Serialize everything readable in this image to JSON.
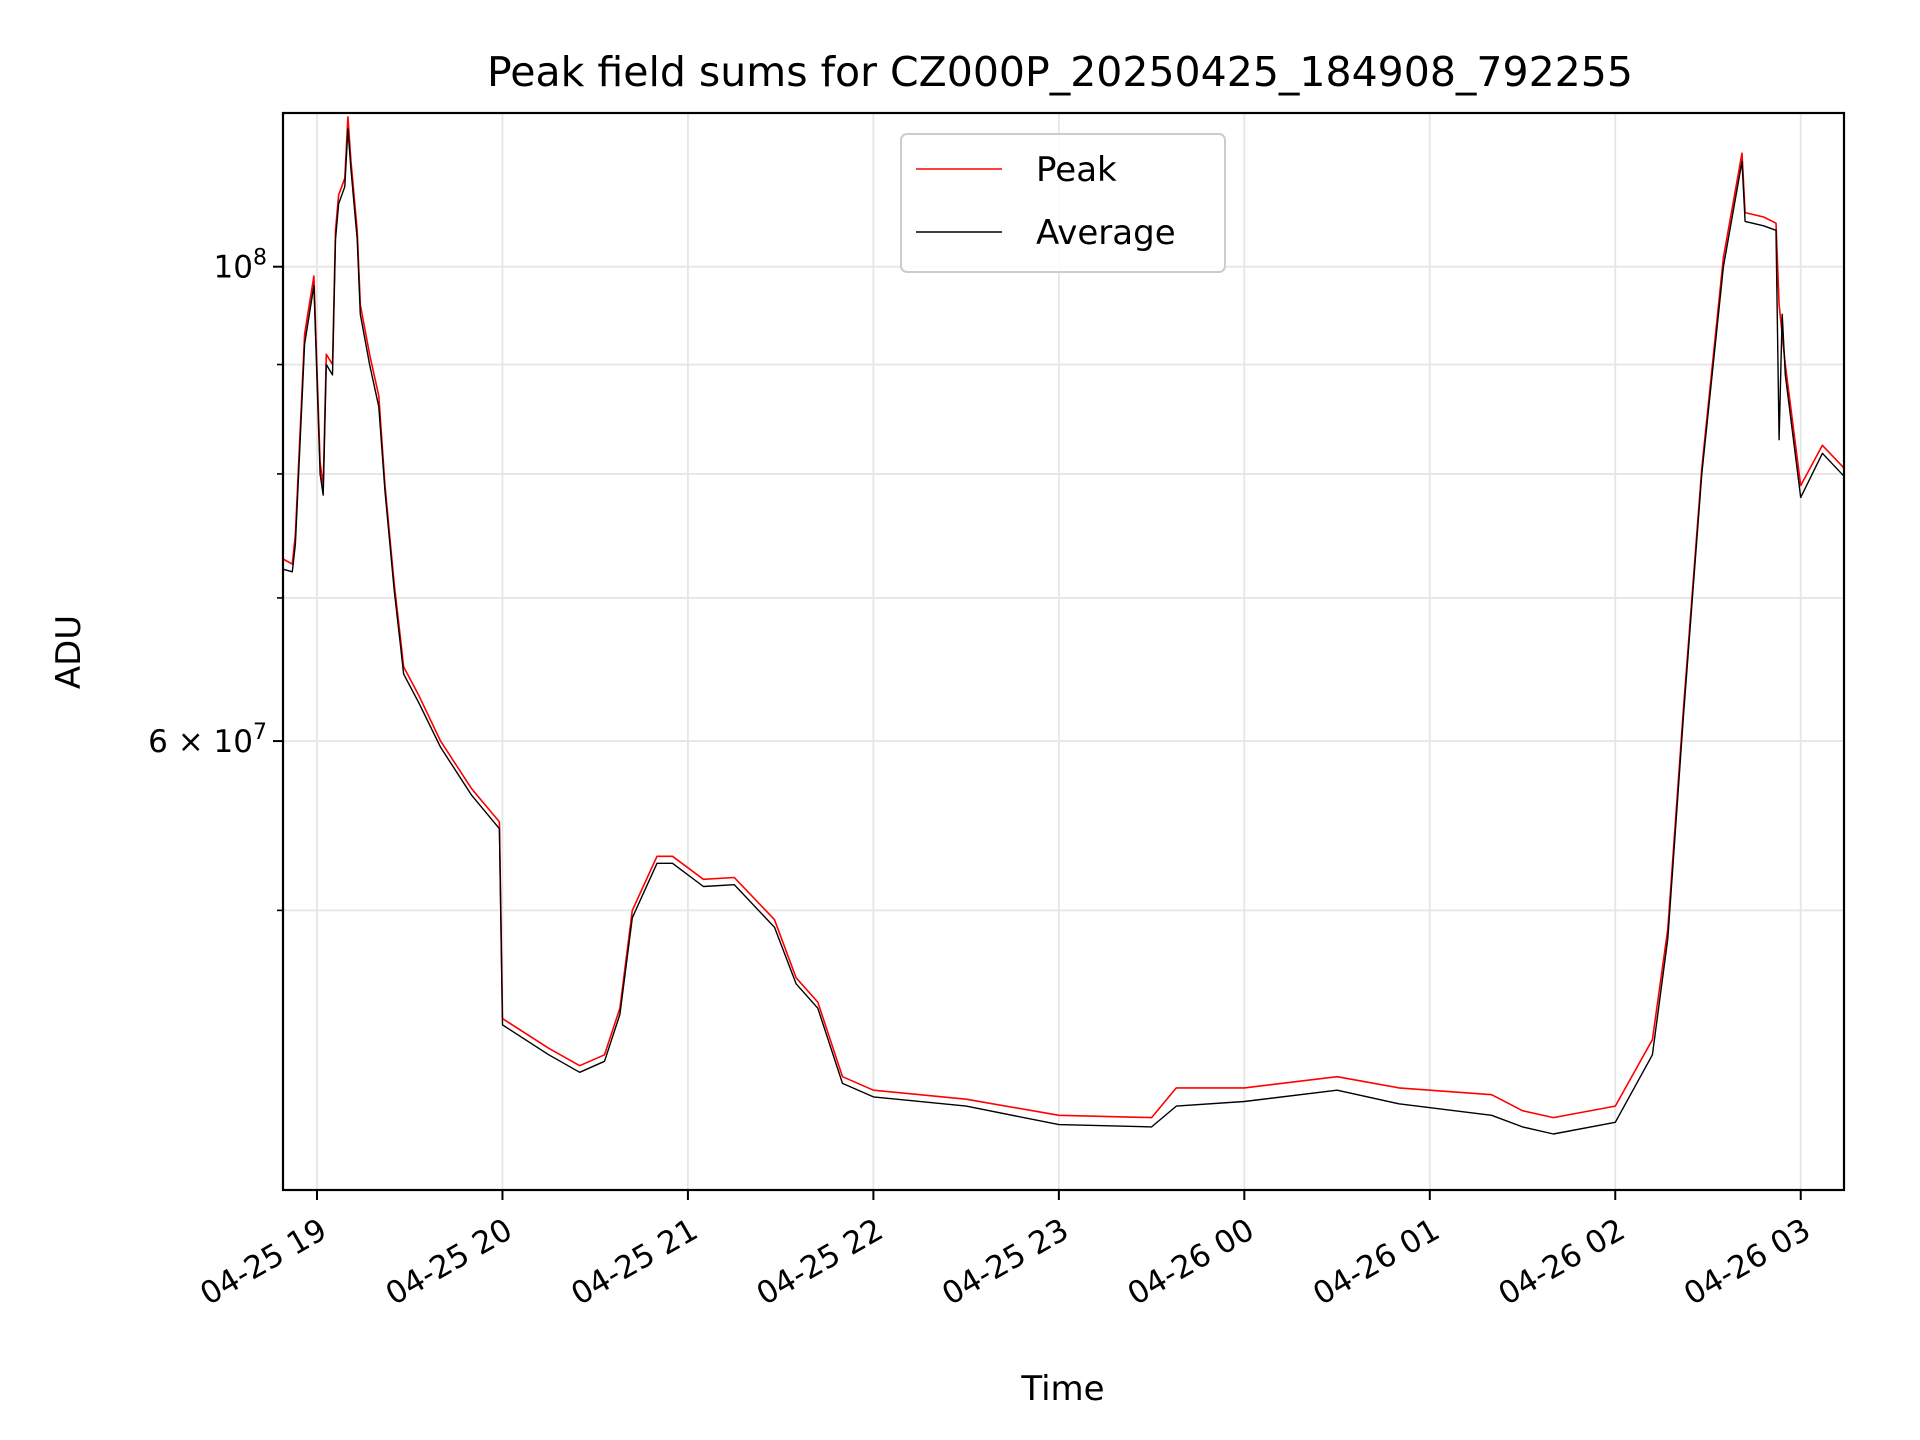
{
  "chart_data": {
    "type": "line",
    "title": "Peak field sums for CZ000P_20250425_184908_792255",
    "xlabel": "Time",
    "ylabel": "ADU",
    "y_scale": "log",
    "xlim": [
      "2025-04-25 18:49",
      "2025-04-26 03:14"
    ],
    "ylim": [
      37000000,
      118000000
    ],
    "grid": true,
    "legend_position": "upper center",
    "x_ticks": [
      {
        "t": "2025-04-25 19:00",
        "label": "04-25 19"
      },
      {
        "t": "2025-04-25 20:00",
        "label": "04-25 20"
      },
      {
        "t": "2025-04-25 21:00",
        "label": "04-25 21"
      },
      {
        "t": "2025-04-25 22:00",
        "label": "04-25 22"
      },
      {
        "t": "2025-04-25 23:00",
        "label": "04-25 23"
      },
      {
        "t": "2025-04-26 00:00",
        "label": "04-26 00"
      },
      {
        "t": "2025-04-26 01:00",
        "label": "04-26 01"
      },
      {
        "t": "2025-04-26 02:00",
        "label": "04-26 02"
      },
      {
        "t": "2025-04-26 03:00",
        "label": "04-26 03"
      }
    ],
    "y_major_ticks": [
      {
        "value": 60000000,
        "label_base": "6 × 10",
        "label_exp": "7"
      },
      {
        "value": 100000000,
        "label_base": "10",
        "label_exp": "8"
      }
    ],
    "y_minor_ticks": [
      50000000,
      70000000,
      80000000,
      90000000
    ],
    "series": [
      {
        "name": "Peak",
        "color": "#ff0000",
        "points": [
          [
            "2025-04-25 18:49",
            73000000
          ],
          [
            "2025-04-25 18:52",
            72600000
          ],
          [
            "2025-04-25 18:53",
            75000000
          ],
          [
            "2025-04-25 18:56",
            93000000
          ],
          [
            "2025-04-25 18:59",
            99000000
          ],
          [
            "2025-04-25 19:01",
            81000000
          ],
          [
            "2025-04-25 19:02",
            79000000
          ],
          [
            "2025-04-25 19:03",
            91000000
          ],
          [
            "2025-04-25 19:05",
            90000000
          ],
          [
            "2025-04-25 19:06",
            104000000
          ],
          [
            "2025-04-25 19:07",
            108000000
          ],
          [
            "2025-04-25 19:09",
            110000000
          ],
          [
            "2025-04-25 19:10",
            117500000
          ],
          [
            "2025-04-25 19:11",
            112000000
          ],
          [
            "2025-04-25 19:13",
            104000000
          ],
          [
            "2025-04-25 19:14",
            96000000
          ],
          [
            "2025-04-25 19:17",
            91000000
          ],
          [
            "2025-04-25 19:20",
            87000000
          ],
          [
            "2025-04-25 19:22",
            79000000
          ],
          [
            "2025-04-25 19:25",
            71000000
          ],
          [
            "2025-04-25 19:27",
            67000000
          ],
          [
            "2025-04-25 19:28",
            65000000
          ],
          [
            "2025-04-25 19:33",
            63000000
          ],
          [
            "2025-04-25 19:40",
            60000000
          ],
          [
            "2025-04-25 19:50",
            57000000
          ],
          [
            "2025-04-25 19:59",
            55000000
          ],
          [
            "2025-04-25 20:00",
            44500000
          ],
          [
            "2025-04-25 20:15",
            43100000
          ],
          [
            "2025-04-25 20:25",
            42300000
          ],
          [
            "2025-04-25 20:33",
            42800000
          ],
          [
            "2025-04-25 20:38",
            45000000
          ],
          [
            "2025-04-25 20:42",
            50000000
          ],
          [
            "2025-04-25 20:50",
            53000000
          ],
          [
            "2025-04-25 20:55",
            53000000
          ],
          [
            "2025-04-25 21:05",
            51700000
          ],
          [
            "2025-04-25 21:15",
            51800000
          ],
          [
            "2025-04-25 21:28",
            49500000
          ],
          [
            "2025-04-25 21:35",
            46500000
          ],
          [
            "2025-04-25 21:42",
            45300000
          ],
          [
            "2025-04-25 21:50",
            41800000
          ],
          [
            "2025-04-25 22:00",
            41200000
          ],
          [
            "2025-04-25 22:30",
            40800000
          ],
          [
            "2025-04-25 23:00",
            40100000
          ],
          [
            "2025-04-25 23:30",
            40000000
          ],
          [
            "2025-04-25 23:38",
            41300000
          ],
          [
            "2025-04-26 00:00",
            41300000
          ],
          [
            "2025-04-26 00:30",
            41800000
          ],
          [
            "2025-04-26 00:50",
            41300000
          ],
          [
            "2025-04-26 01:20",
            41000000
          ],
          [
            "2025-04-26 01:30",
            40300000
          ],
          [
            "2025-04-26 01:40",
            40000000
          ],
          [
            "2025-04-26 02:00",
            40500000
          ],
          [
            "2025-04-26 02:12",
            43500000
          ],
          [
            "2025-04-26 02:17",
            49000000
          ],
          [
            "2025-04-26 02:22",
            62000000
          ],
          [
            "2025-04-26 02:28",
            80500000
          ],
          [
            "2025-04-26 02:35",
            101000000
          ],
          [
            "2025-04-26 02:41",
            113000000
          ],
          [
            "2025-04-26 02:42",
            106000000
          ],
          [
            "2025-04-26 02:48",
            105500000
          ],
          [
            "2025-04-26 02:52",
            104800000
          ],
          [
            "2025-04-26 02:53",
            96000000
          ],
          [
            "2025-04-26 02:55",
            90000000
          ],
          [
            "2025-04-26 03:00",
            79000000
          ],
          [
            "2025-04-26 03:07",
            82500000
          ],
          [
            "2025-04-26 03:14",
            80500000
          ]
        ]
      },
      {
        "name": "Average",
        "color": "#000000",
        "points": [
          [
            "2025-04-25 18:49",
            72200000
          ],
          [
            "2025-04-25 18:52",
            72000000
          ],
          [
            "2025-04-25 18:53",
            74200000
          ],
          [
            "2025-04-25 18:56",
            92000000
          ],
          [
            "2025-04-25 18:59",
            98000000
          ],
          [
            "2025-04-25 19:01",
            80000000
          ],
          [
            "2025-04-25 19:02",
            78200000
          ],
          [
            "2025-04-25 19:03",
            90000000
          ],
          [
            "2025-04-25 19:05",
            89000000
          ],
          [
            "2025-04-25 19:06",
            103000000
          ],
          [
            "2025-04-25 19:07",
            107000000
          ],
          [
            "2025-04-25 19:09",
            109000000
          ],
          [
            "2025-04-25 19:10",
            116000000
          ],
          [
            "2025-04-25 19:11",
            111000000
          ],
          [
            "2025-04-25 19:13",
            103000000
          ],
          [
            "2025-04-25 19:14",
            95000000
          ],
          [
            "2025-04-25 19:17",
            90000000
          ],
          [
            "2025-04-25 19:20",
            86000000
          ],
          [
            "2025-04-25 19:22",
            78500000
          ],
          [
            "2025-04-25 19:25",
            70500000
          ],
          [
            "2025-04-25 19:27",
            66500000
          ],
          [
            "2025-04-25 19:28",
            64500000
          ],
          [
            "2025-04-25 19:33",
            62500000
          ],
          [
            "2025-04-25 19:40",
            59600000
          ],
          [
            "2025-04-25 19:50",
            56600000
          ],
          [
            "2025-04-25 19:59",
            54600000
          ],
          [
            "2025-04-25 20:00",
            44200000
          ],
          [
            "2025-04-25 20:15",
            42800000
          ],
          [
            "2025-04-25 20:25",
            42000000
          ],
          [
            "2025-04-25 20:33",
            42500000
          ],
          [
            "2025-04-25 20:38",
            44700000
          ],
          [
            "2025-04-25 20:42",
            49600000
          ],
          [
            "2025-04-25 20:50",
            52600000
          ],
          [
            "2025-04-25 20:55",
            52600000
          ],
          [
            "2025-04-25 21:05",
            51300000
          ],
          [
            "2025-04-25 21:15",
            51400000
          ],
          [
            "2025-04-25 21:28",
            49100000
          ],
          [
            "2025-04-25 21:35",
            46200000
          ],
          [
            "2025-04-25 21:42",
            45000000
          ],
          [
            "2025-04-25 21:50",
            41500000
          ],
          [
            "2025-04-25 22:00",
            40900000
          ],
          [
            "2025-04-25 22:30",
            40500000
          ],
          [
            "2025-04-25 23:00",
            39700000
          ],
          [
            "2025-04-25 23:30",
            39600000
          ],
          [
            "2025-04-25 23:38",
            40500000
          ],
          [
            "2025-04-26 00:00",
            40700000
          ],
          [
            "2025-04-26 00:30",
            41200000
          ],
          [
            "2025-04-26 00:50",
            40600000
          ],
          [
            "2025-04-26 01:20",
            40100000
          ],
          [
            "2025-04-26 01:30",
            39600000
          ],
          [
            "2025-04-26 01:40",
            39300000
          ],
          [
            "2025-04-26 02:00",
            39800000
          ],
          [
            "2025-04-26 02:12",
            42800000
          ],
          [
            "2025-04-26 02:17",
            48500000
          ],
          [
            "2025-04-26 02:22",
            61500000
          ],
          [
            "2025-04-26 02:28",
            80000000
          ],
          [
            "2025-04-26 02:35",
            100000000
          ],
          [
            "2025-04-26 02:41",
            112000000
          ],
          [
            "2025-04-26 02:42",
            105000000
          ],
          [
            "2025-04-26 02:48",
            104500000
          ],
          [
            "2025-04-26 02:52",
            104000000
          ],
          [
            "2025-04-26 02:53",
            83000000
          ],
          [
            "2025-04-26 02:54",
            95000000
          ],
          [
            "2025-04-26 02:55",
            89000000
          ],
          [
            "2025-04-26 03:00",
            78000000
          ],
          [
            "2025-04-26 03:07",
            81800000
          ],
          [
            "2025-04-26 03:14",
            79800000
          ]
        ]
      }
    ]
  }
}
